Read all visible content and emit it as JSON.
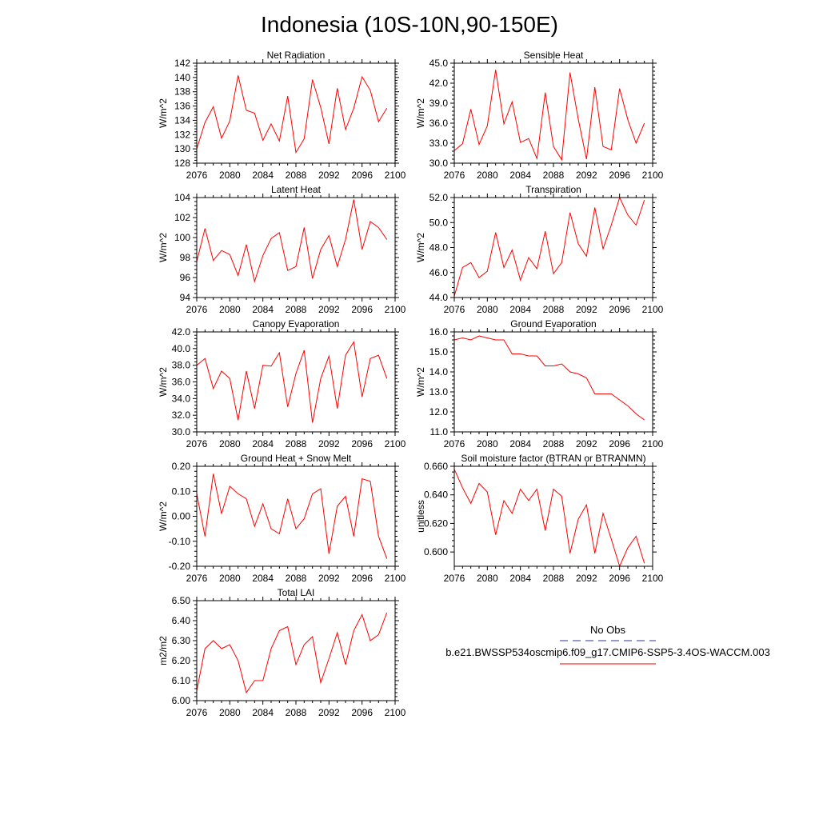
{
  "figure": {
    "title": "Indonesia (10S-10N,90-150E)",
    "legend": {
      "obs_label": "No Obs",
      "model_label": "b.e21.BWSSP534oscmip6.f09_g17.CMIP6-SSP5-3.4OS-WACCM.003",
      "obs_color": "#3030a0",
      "model_color": "#ff0000"
    }
  },
  "chart_data": [
    {
      "type": "line",
      "title": "Net Radiation",
      "xlabel": "",
      "ylabel": "W/m^2",
      "xlim": [
        2076,
        2100
      ],
      "ylim": [
        128,
        142
      ],
      "yticks": [
        128,
        130,
        132,
        134,
        136,
        138,
        140,
        142
      ],
      "ytick_labels": [
        "128",
        "130",
        "132",
        "134",
        "136",
        "138",
        "140",
        "142"
      ],
      "xticks": [
        2076,
        2080,
        2084,
        2088,
        2092,
        2096,
        2100
      ],
      "xtick_labels": [
        "2076",
        "2080",
        "2084",
        "2088",
        "2092",
        "2096",
        "2100"
      ],
      "series": [
        {
          "name": "b.e21.BWSSP534oscmip6.f09_g17.CMIP6-SSP5-3.4OS-WACCM.003",
          "color": "#ff0000",
          "x": [
            2076,
            2077,
            2078,
            2079,
            2080,
            2081,
            2082,
            2083,
            2084,
            2085,
            2086,
            2087,
            2088,
            2089,
            2090,
            2091,
            2092,
            2093,
            2094,
            2095,
            2096,
            2097,
            2098,
            2099
          ],
          "values": [
            130.0,
            133.7,
            135.9,
            131.5,
            133.9,
            140.3,
            135.4,
            135.0,
            131.2,
            133.5,
            131.1,
            137.4,
            129.5,
            131.4,
            139.7,
            135.8,
            130.7,
            138.5,
            132.7,
            135.7,
            140.1,
            138.2,
            133.8,
            135.7
          ]
        }
      ]
    },
    {
      "type": "line",
      "title": "Sensible Heat",
      "xlabel": "",
      "ylabel": "W/m^2",
      "xlim": [
        2076,
        2100
      ],
      "ylim": [
        30,
        45
      ],
      "yticks": [
        30,
        33,
        36,
        39,
        42,
        45
      ],
      "ytick_labels": [
        "30.0",
        "33.0",
        "36.0",
        "39.0",
        "42.0",
        "45.0"
      ],
      "xticks": [
        2076,
        2080,
        2084,
        2088,
        2092,
        2096,
        2100
      ],
      "xtick_labels": [
        "2076",
        "2080",
        "2084",
        "2088",
        "2092",
        "2096",
        "2100"
      ],
      "series": [
        {
          "name": "b.e21.BWSSP534oscmip6.f09_g17.CMIP6-SSP5-3.4OS-WACCM.003",
          "color": "#ff0000",
          "x": [
            2076,
            2077,
            2078,
            2079,
            2080,
            2081,
            2082,
            2083,
            2084,
            2085,
            2086,
            2087,
            2088,
            2089,
            2090,
            2091,
            2092,
            2093,
            2094,
            2095,
            2096,
            2097,
            2098,
            2099
          ],
          "values": [
            31.9,
            32.9,
            38.1,
            32.8,
            35.6,
            44.0,
            35.9,
            39.2,
            33.1,
            33.7,
            30.7,
            40.6,
            32.5,
            30.5,
            43.6,
            36.6,
            30.6,
            41.4,
            32.5,
            32.0,
            41.2,
            36.5,
            33.0,
            36.0
          ]
        }
      ]
    },
    {
      "type": "line",
      "title": "Latent Heat",
      "xlabel": "",
      "ylabel": "W/m^2",
      "xlim": [
        2076,
        2100
      ],
      "ylim": [
        94,
        104
      ],
      "yticks": [
        94,
        96,
        98,
        100,
        102,
        104
      ],
      "ytick_labels": [
        "94",
        "96",
        "98",
        "100",
        "102",
        "104"
      ],
      "xticks": [
        2076,
        2080,
        2084,
        2088,
        2092,
        2096,
        2100
      ],
      "xtick_labels": [
        "2076",
        "2080",
        "2084",
        "2088",
        "2092",
        "2096",
        "2100"
      ],
      "series": [
        {
          "name": "b.e21.BWSSP534oscmip6.f09_g17.CMIP6-SSP5-3.4OS-WACCM.003",
          "color": "#ff0000",
          "x": [
            2076,
            2077,
            2078,
            2079,
            2080,
            2081,
            2082,
            2083,
            2084,
            2085,
            2086,
            2087,
            2088,
            2089,
            2090,
            2091,
            2092,
            2093,
            2094,
            2095,
            2096,
            2097,
            2098,
            2099
          ],
          "values": [
            97.6,
            100.9,
            97.7,
            98.7,
            98.3,
            96.2,
            99.3,
            95.6,
            98.2,
            99.9,
            100.5,
            96.7,
            97.1,
            101.0,
            95.9,
            98.8,
            100.2,
            97.1,
            99.8,
            103.8,
            98.8,
            101.6,
            101.0,
            99.8
          ]
        }
      ]
    },
    {
      "type": "line",
      "title": "Transpiration",
      "xlabel": "",
      "ylabel": "W/m^2",
      "xlim": [
        2076,
        2100
      ],
      "ylim": [
        44,
        52
      ],
      "yticks": [
        44,
        46,
        48,
        50,
        52
      ],
      "ytick_labels": [
        "44.0",
        "46.0",
        "48.0",
        "50.0",
        "52.0"
      ],
      "xticks": [
        2076,
        2080,
        2084,
        2088,
        2092,
        2096,
        2100
      ],
      "xtick_labels": [
        "2076",
        "2080",
        "2084",
        "2088",
        "2092",
        "2096",
        "2100"
      ],
      "series": [
        {
          "name": "b.e21.BWSSP534oscmip6.f09_g17.CMIP6-SSP5-3.4OS-WACCM.003",
          "color": "#ff0000",
          "x": [
            2076,
            2077,
            2078,
            2079,
            2080,
            2081,
            2082,
            2083,
            2084,
            2085,
            2086,
            2087,
            2088,
            2089,
            2090,
            2091,
            2092,
            2093,
            2094,
            2095,
            2096,
            2097,
            2098,
            2099
          ],
          "values": [
            44.1,
            46.4,
            46.8,
            45.6,
            46.1,
            49.2,
            46.4,
            47.8,
            45.4,
            47.2,
            46.3,
            49.3,
            45.9,
            46.8,
            50.8,
            48.3,
            47.3,
            51.2,
            47.9,
            49.8,
            52.0,
            50.6,
            49.8,
            51.8
          ]
        }
      ]
    },
    {
      "type": "line",
      "title": "Canopy Evaporation",
      "xlabel": "",
      "ylabel": "W/m^2",
      "xlim": [
        2076,
        2100
      ],
      "ylim": [
        30,
        42
      ],
      "yticks": [
        30,
        32,
        34,
        36,
        38,
        40,
        42
      ],
      "ytick_labels": [
        "30.0",
        "32.0",
        "34.0",
        "36.0",
        "38.0",
        "40.0",
        "42.0"
      ],
      "xticks": [
        2076,
        2080,
        2084,
        2088,
        2092,
        2096,
        2100
      ],
      "xtick_labels": [
        "2076",
        "2080",
        "2084",
        "2088",
        "2092",
        "2096",
        "2100"
      ],
      "series": [
        {
          "name": "b.e21.BWSSP534oscmip6.f09_g17.CMIP6-SSP5-3.4OS-WACCM.003",
          "color": "#ff0000",
          "x": [
            2076,
            2077,
            2078,
            2079,
            2080,
            2081,
            2082,
            2083,
            2084,
            2085,
            2086,
            2087,
            2088,
            2089,
            2090,
            2091,
            2092,
            2093,
            2094,
            2095,
            2096,
            2097,
            2098,
            2099
          ],
          "values": [
            38.0,
            38.8,
            35.2,
            37.3,
            36.4,
            31.4,
            37.3,
            32.8,
            38.0,
            37.9,
            39.5,
            33.0,
            37.0,
            39.8,
            31.1,
            36.4,
            39.1,
            32.8,
            39.2,
            40.8,
            34.2,
            38.8,
            39.2,
            36.4
          ]
        }
      ]
    },
    {
      "type": "line",
      "title": "Ground Evaporation",
      "xlabel": "",
      "ylabel": "W/m^2",
      "xlim": [
        2076,
        2100
      ],
      "ylim": [
        11,
        16
      ],
      "yticks": [
        11,
        12,
        13,
        14,
        15,
        16
      ],
      "ytick_labels": [
        "11.0",
        "12.0",
        "13.0",
        "14.0",
        "15.0",
        "16.0"
      ],
      "xticks": [
        2076,
        2080,
        2084,
        2088,
        2092,
        2096,
        2100
      ],
      "xtick_labels": [
        "2076",
        "2080",
        "2084",
        "2088",
        "2092",
        "2096",
        "2100"
      ],
      "series": [
        {
          "name": "b.e21.BWSSP534oscmip6.f09_g17.CMIP6-SSP5-3.4OS-WACCM.003",
          "color": "#ff0000",
          "x": [
            2076,
            2077,
            2078,
            2079,
            2080,
            2081,
            2082,
            2083,
            2084,
            2085,
            2086,
            2087,
            2088,
            2089,
            2090,
            2091,
            2092,
            2093,
            2094,
            2095,
            2096,
            2097,
            2098,
            2099
          ],
          "values": [
            15.6,
            15.7,
            15.6,
            15.8,
            15.7,
            15.6,
            15.6,
            14.9,
            14.9,
            14.8,
            14.8,
            14.3,
            14.3,
            14.4,
            14.0,
            13.9,
            13.7,
            12.9,
            12.9,
            12.9,
            12.6,
            12.3,
            11.9,
            11.6
          ]
        }
      ]
    },
    {
      "type": "line",
      "title": "Ground Heat + Snow Melt",
      "xlabel": "",
      "ylabel": "W/m^2",
      "xlim": [
        2076,
        2100
      ],
      "ylim": [
        -0.2,
        0.2
      ],
      "yticks": [
        -0.2,
        -0.1,
        0.0,
        0.1,
        0.2
      ],
      "ytick_labels": [
        "-0.20",
        "-0.10",
        "0.00",
        "0.10",
        "0.20"
      ],
      "xticks": [
        2076,
        2080,
        2084,
        2088,
        2092,
        2096,
        2100
      ],
      "xtick_labels": [
        "2076",
        "2080",
        "2084",
        "2088",
        "2092",
        "2096",
        "2100"
      ],
      "series": [
        {
          "name": "b.e21.BWSSP534oscmip6.f09_g17.CMIP6-SSP5-3.4OS-WACCM.003",
          "color": "#ff0000",
          "x": [
            2076,
            2077,
            2078,
            2079,
            2080,
            2081,
            2082,
            2083,
            2084,
            2085,
            2086,
            2087,
            2088,
            2089,
            2090,
            2091,
            2092,
            2093,
            2094,
            2095,
            2096,
            2097,
            2098,
            2099
          ],
          "values": [
            0.09,
            -0.08,
            0.17,
            0.01,
            0.12,
            0.09,
            0.07,
            -0.04,
            0.05,
            -0.05,
            -0.07,
            0.07,
            -0.05,
            -0.01,
            0.09,
            0.11,
            -0.15,
            0.04,
            0.08,
            -0.08,
            0.15,
            0.14,
            -0.08,
            -0.17
          ]
        }
      ]
    },
    {
      "type": "line",
      "title": "Soil moisture factor (BTRAN or BTRANMN)",
      "xlabel": "",
      "ylabel": "unitless",
      "xlim": [
        2076,
        2100
      ],
      "ylim": [
        0.59,
        0.66
      ],
      "yticks": [
        0.6,
        0.62,
        0.64,
        0.66
      ],
      "ytick_labels": [
        "0.600",
        "0.620",
        "0.640",
        "0.660"
      ],
      "xticks": [
        2076,
        2080,
        2084,
        2088,
        2092,
        2096,
        2100
      ],
      "xtick_labels": [
        "2076",
        "2080",
        "2084",
        "2088",
        "2092",
        "2096",
        "2100"
      ],
      "series": [
        {
          "name": "b.e21.BWSSP534oscmip6.f09_g17.CMIP6-SSP5-3.4OS-WACCM.003",
          "color": "#ff0000",
          "x": [
            2076,
            2077,
            2078,
            2079,
            2080,
            2081,
            2082,
            2083,
            2084,
            2085,
            2086,
            2087,
            2088,
            2089,
            2090,
            2091,
            2092,
            2093,
            2094,
            2095,
            2096,
            2097,
            2098,
            2099
          ],
          "values": [
            0.658,
            0.645,
            0.634,
            0.648,
            0.642,
            0.612,
            0.636,
            0.627,
            0.644,
            0.636,
            0.644,
            0.615,
            0.644,
            0.639,
            0.599,
            0.623,
            0.633,
            0.599,
            0.627,
            0.609,
            0.59,
            0.603,
            0.611,
            0.592
          ]
        }
      ]
    },
    {
      "type": "line",
      "title": "Total LAI",
      "xlabel": "",
      "ylabel": "m2/m2",
      "xlim": [
        2076,
        2100
      ],
      "ylim": [
        6.0,
        6.5
      ],
      "yticks": [
        6.0,
        6.1,
        6.2,
        6.3,
        6.4,
        6.5
      ],
      "ytick_labels": [
        "6.00",
        "6.10",
        "6.20",
        "6.30",
        "6.40",
        "6.50"
      ],
      "xticks": [
        2076,
        2080,
        2084,
        2088,
        2092,
        2096,
        2100
      ],
      "xtick_labels": [
        "2076",
        "2080",
        "2084",
        "2088",
        "2092",
        "2096",
        "2100"
      ],
      "series": [
        {
          "name": "b.e21.BWSSP534oscmip6.f09_g17.CMIP6-SSP5-3.4OS-WACCM.003",
          "color": "#ff0000",
          "x": [
            2076,
            2077,
            2078,
            2079,
            2080,
            2081,
            2082,
            2083,
            2084,
            2085,
            2086,
            2087,
            2088,
            2089,
            2090,
            2091,
            2092,
            2093,
            2094,
            2095,
            2096,
            2097,
            2098,
            2099
          ],
          "values": [
            6.05,
            6.26,
            6.3,
            6.26,
            6.28,
            6.2,
            6.04,
            6.1,
            6.1,
            6.26,
            6.35,
            6.37,
            6.18,
            6.28,
            6.32,
            6.09,
            6.21,
            6.34,
            6.18,
            6.35,
            6.43,
            6.3,
            6.33,
            6.44
          ]
        }
      ]
    }
  ]
}
